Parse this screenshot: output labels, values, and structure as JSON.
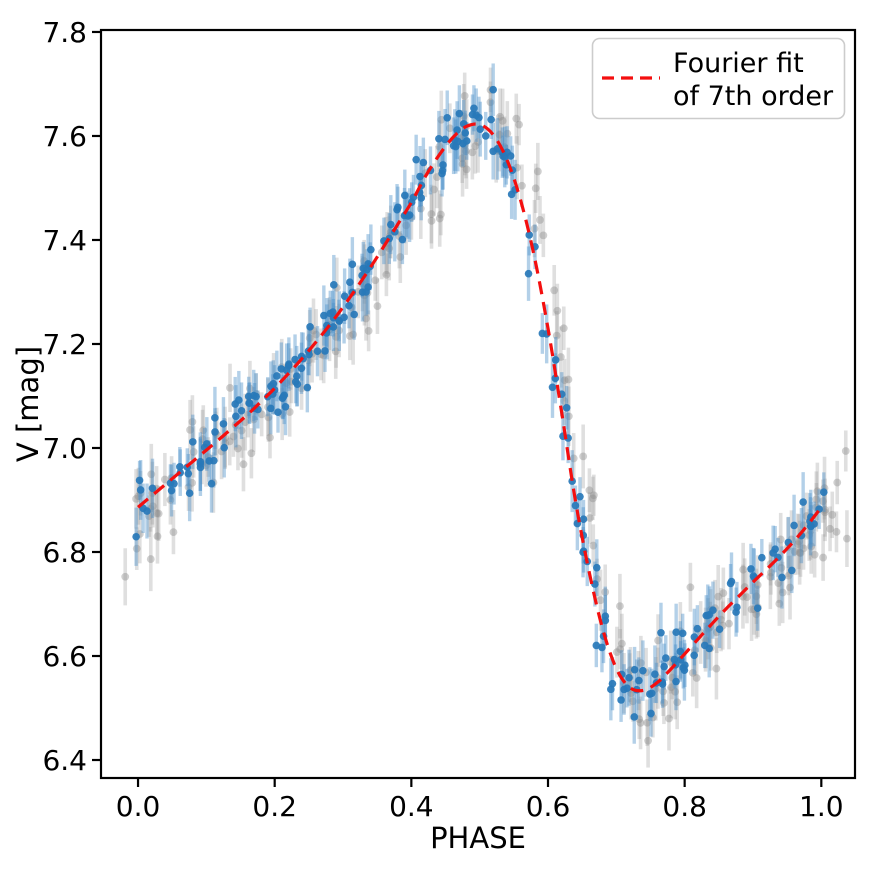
{
  "figure": {
    "background": "#ffffff"
  },
  "chart_data": {
    "type": "scatter",
    "title": "",
    "xlabel": "PHASE",
    "ylabel": "V [mag]",
    "grid": false,
    "xlim": [
      -0.0542,
      1.0493
    ],
    "ylim": [
      6.3654,
      7.8038
    ],
    "x_ticks": [
      {
        "value": 0.0,
        "label": "0.0"
      },
      {
        "value": 0.2,
        "label": "0.2"
      },
      {
        "value": 0.4,
        "label": "0.4"
      },
      {
        "value": 0.6,
        "label": "0.6"
      },
      {
        "value": 0.8,
        "label": "0.8"
      },
      {
        "value": 1.0,
        "label": "1.0"
      }
    ],
    "y_ticks": [
      {
        "value": 6.4,
        "label": "6.4"
      },
      {
        "value": 6.6,
        "label": "6.6"
      },
      {
        "value": 6.8,
        "label": "6.8"
      },
      {
        "value": 7.0,
        "label": "7.0"
      },
      {
        "value": 7.2,
        "label": "7.2"
      },
      {
        "value": 7.4,
        "label": "7.4"
      },
      {
        "value": 7.6,
        "label": "7.6"
      },
      {
        "value": 7.8,
        "label": "7.8"
      }
    ],
    "legend": {
      "position": "upper right",
      "line1": "Fourier fit",
      "line2": "of 7th order",
      "sample_style": "dashed",
      "sample_color": "#f40f0f"
    },
    "fit_curve": {
      "label": "Fourier fit of 7th order",
      "style": "dashed",
      "color": "#f40f0f",
      "phase": [
        0.0,
        0.02,
        0.04,
        0.06,
        0.08,
        0.1,
        0.12,
        0.14,
        0.16,
        0.18,
        0.2,
        0.22,
        0.24,
        0.26,
        0.28,
        0.3,
        0.32,
        0.34,
        0.36,
        0.38,
        0.4,
        0.42,
        0.44,
        0.46,
        0.48,
        0.5,
        0.52,
        0.54,
        0.56,
        0.58,
        0.6,
        0.62,
        0.64,
        0.66,
        0.68,
        0.7,
        0.72,
        0.74,
        0.76,
        0.78,
        0.8,
        0.82,
        0.84,
        0.86,
        0.88,
        0.9,
        0.92,
        0.94,
        0.96,
        0.98,
        1.0
      ],
      "v": [
        6.886,
        6.908,
        6.93,
        6.952,
        6.974,
        6.996,
        7.018,
        7.041,
        7.064,
        7.089,
        7.115,
        7.143,
        7.172,
        7.203,
        7.236,
        7.271,
        7.308,
        7.347,
        7.388,
        7.43,
        7.472,
        7.521,
        7.562,
        7.596,
        7.618,
        7.622,
        7.602,
        7.554,
        7.476,
        7.368,
        7.23,
        7.068,
        6.9,
        6.763,
        6.652,
        6.576,
        6.539,
        6.534,
        6.549,
        6.575,
        6.604,
        6.633,
        6.662,
        6.69,
        6.716,
        6.742,
        6.767,
        6.793,
        6.821,
        6.852,
        6.886
      ]
    },
    "series": [
      {
        "key": "gray_points",
        "marker_color": "#8c8c8c",
        "marker_alpha": 0.42,
        "marker_radius": 3.9,
        "errorbar_color": "#969696",
        "errorbar_alpha": 0.3,
        "errorbar_width": 3.6,
        "n": 255,
        "phase_range": [
          -0.02,
          1.04
        ],
        "phase_lag": 0.016,
        "v_scatter_sigma": 0.045,
        "v_error_mag": 0.05,
        "seed": 1234567
      },
      {
        "key": "blue_points",
        "marker_color": "#2878b8",
        "marker_alpha": 0.92,
        "marker_radius": 3.8,
        "errorbar_color": "#4a90c8",
        "errorbar_alpha": 0.42,
        "errorbar_width": 3.4,
        "n": 245,
        "phase_range": [
          -0.005,
          1.005
        ],
        "phase_lag": 0.0,
        "v_scatter_sigma": 0.033,
        "v_error_mag": 0.048,
        "seed": 424242
      }
    ]
  }
}
